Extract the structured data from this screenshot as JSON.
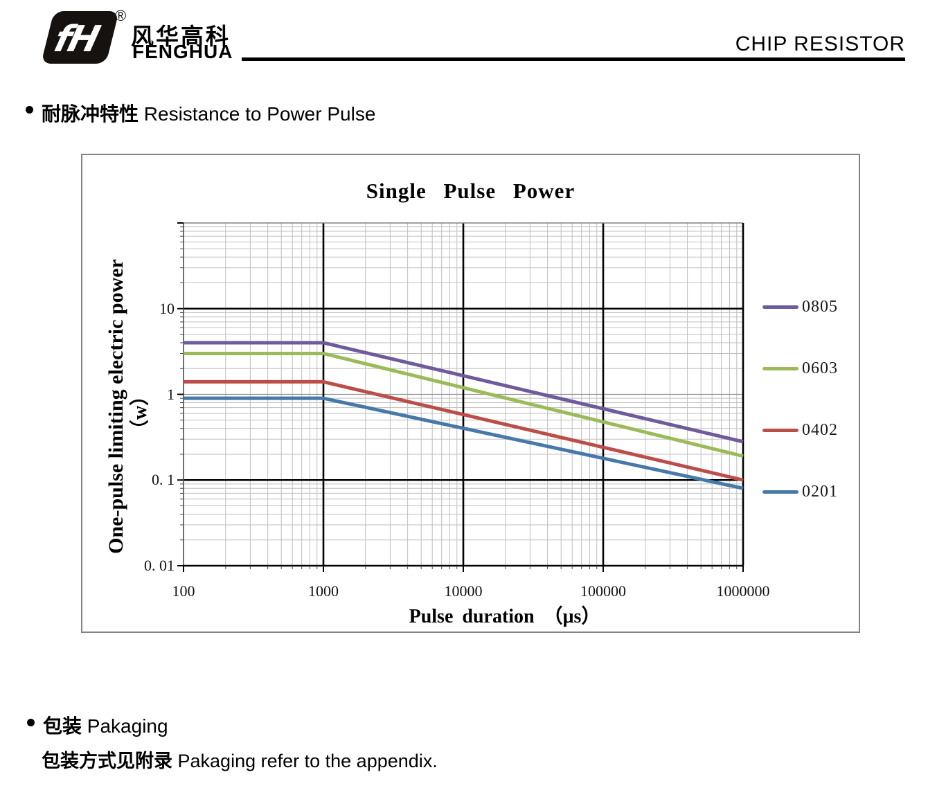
{
  "header": {
    "logo_monogram": "fH",
    "registered_mark": "®",
    "brand_cn": "风华高科",
    "brand_en": "FENGHUA",
    "doc_title": "CHIP RESISTOR"
  },
  "sections": {
    "pulse": {
      "cn": "耐脉冲特性",
      "en": "Resistance to Power Pulse"
    },
    "packaging": {
      "cn": "包装",
      "en": "Pakaging"
    },
    "packaging_note": {
      "cn": "包装方式见附录",
      "en": "Pakaging refer to the appendix."
    }
  },
  "chart_data": {
    "type": "line",
    "title": "Single Pulse Power",
    "xlabel": "Pulse duration （μs）",
    "ylabel": "One-pulse limiting electric power",
    "ylabel_unit": "（w）",
    "x_scale": "log",
    "y_scale": "log",
    "xlim": [
      100,
      1000000
    ],
    "ylim": [
      0.01,
      100
    ],
    "x_ticks": [
      {
        "v": 100,
        "label": "100"
      },
      {
        "v": 1000,
        "label": "1000"
      },
      {
        "v": 10000,
        "label": "10000"
      },
      {
        "v": 100000,
        "label": "100000"
      },
      {
        "v": 1000000,
        "label": "1000000"
      }
    ],
    "y_ticks": [
      {
        "v": 10,
        "label": "10"
      },
      {
        "v": 1,
        "label": "1"
      },
      {
        "v": 0.1,
        "label": "0. 1"
      },
      {
        "v": 0.01,
        "label": "0. 01"
      }
    ],
    "grid": "log major and minor gridlines, both axes",
    "emphasized_x_gridlines": [
      1000,
      10000,
      100000
    ],
    "emphasized_y_gridlines": [
      10,
      0.1
    ],
    "legend_position": "right",
    "series": [
      {
        "name": "0805",
        "color": "#6f5b9c",
        "points": [
          [
            100,
            4
          ],
          [
            1000,
            4
          ],
          [
            1000000,
            0.28
          ]
        ]
      },
      {
        "name": "0603",
        "color": "#9bbb59",
        "points": [
          [
            100,
            3
          ],
          [
            1000,
            3
          ],
          [
            1000000,
            0.19
          ]
        ]
      },
      {
        "name": "0402",
        "color": "#bc4e49",
        "points": [
          [
            100,
            1.4
          ],
          [
            1000,
            1.4
          ],
          [
            1000000,
            0.1
          ]
        ]
      },
      {
        "name": "0201",
        "color": "#4679aa",
        "points": [
          [
            100,
            0.9
          ],
          [
            1000,
            0.9
          ],
          [
            1000000,
            0.08
          ]
        ]
      }
    ]
  }
}
